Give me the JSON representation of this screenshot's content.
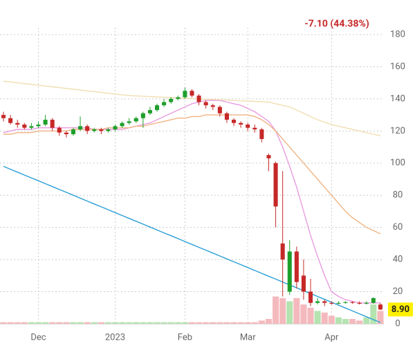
{
  "chart_data": {
    "type": "candlestick",
    "annotation": "-7.10 (44.38%)",
    "last_price": {
      "value": 8.9,
      "label": "8.90"
    },
    "categories": [
      null,
      null,
      null,
      null,
      null,
      "Dec",
      null,
      null,
      null,
      null,
      null,
      null,
      null,
      null,
      null,
      null,
      "2023",
      null,
      null,
      null,
      null,
      null,
      null,
      null,
      null,
      null,
      "Feb",
      null,
      null,
      null,
      null,
      null,
      null,
      null,
      null,
      "Mar",
      null,
      null,
      null,
      null,
      null,
      null,
      null,
      null,
      null,
      null,
      null,
      "Apr",
      null,
      null,
      null,
      null,
      null,
      null,
      null
    ],
    "open": [
      130,
      128,
      125,
      124,
      122,
      123,
      124,
      127,
      122,
      119,
      118,
      121,
      123,
      120,
      121,
      120,
      121,
      123,
      125,
      126,
      128,
      131,
      133,
      136,
      138,
      140,
      141,
      145,
      142,
      138,
      136,
      135,
      131,
      127,
      125,
      124,
      122,
      121,
      105,
      100,
      50,
      20,
      45,
      30,
      20,
      13,
      14,
      13,
      12.5,
      13,
      13.5,
      13,
      12.5,
      13,
      12
    ],
    "high": [
      132,
      130,
      127,
      125,
      125,
      126,
      130,
      128,
      123,
      120,
      122,
      129,
      124,
      122,
      122,
      122,
      124,
      126,
      128,
      129,
      132,
      135,
      137,
      140,
      141,
      142,
      147,
      146,
      143,
      139,
      137,
      136,
      132,
      128,
      126,
      125,
      124,
      122,
      106,
      101,
      95,
      52,
      48,
      40,
      28,
      16,
      15,
      14,
      14,
      14,
      14,
      14,
      14,
      16.5,
      13
    ],
    "low": [
      126,
      124,
      122,
      121,
      121,
      122,
      123,
      120,
      117,
      116,
      117,
      120,
      118,
      119,
      118,
      119,
      120,
      122,
      124,
      125,
      122,
      130,
      132,
      135,
      137,
      139,
      140,
      141,
      136,
      134,
      133,
      129,
      125,
      123,
      122,
      120,
      119,
      113,
      95,
      60,
      17,
      18,
      22,
      15,
      11,
      12,
      11,
      12,
      12,
      12.5,
      12.5,
      12,
      12,
      12.5,
      8.5
    ],
    "close": [
      128,
      125,
      124,
      122,
      123,
      124,
      127,
      122,
      119,
      118,
      121,
      123,
      120,
      121,
      120,
      121,
      123,
      125,
      126,
      128,
      131,
      133,
      136,
      138,
      140,
      141,
      145,
      142,
      138,
      136,
      135,
      131,
      127,
      125,
      124,
      122,
      121,
      115,
      103,
      73,
      40,
      45,
      26,
      20,
      13,
      14,
      13,
      12.5,
      13,
      13.5,
      13,
      12.5,
      13,
      16,
      8.9
    ],
    "volume": [
      1,
      1,
      1,
      1,
      1,
      1,
      1,
      1,
      1,
      1,
      1,
      1,
      1,
      1,
      1,
      1,
      1,
      1,
      1,
      1,
      1,
      1,
      1,
      1,
      1,
      1,
      1,
      1,
      1,
      1,
      1,
      1,
      1,
      1,
      1,
      1,
      1,
      2,
      3,
      17,
      16,
      14,
      16,
      12,
      10,
      8,
      7,
      5,
      4,
      3,
      3,
      2,
      4,
      12,
      8
    ],
    "up_color": "#1e9e2a",
    "down_color": "#c62828",
    "up_volume_color": "#b5e3b0",
    "down_volume_color": "#f4b9bd",
    "lines": [
      {
        "color": "#e89be0",
        "values": [
          119,
          120,
          121,
          121,
          121,
          122,
          122,
          122,
          122,
          122,
          122,
          122,
          122,
          121,
          121,
          121,
          121,
          121,
          122,
          123,
          124,
          125,
          127,
          129,
          131,
          133,
          135,
          137,
          138,
          139,
          139,
          139,
          138,
          137,
          136,
          134,
          132,
          129,
          126,
          120,
          110,
          98,
          85,
          70,
          55,
          42,
          30,
          20,
          17,
          15,
          14,
          13,
          13,
          13,
          13
        ]
      },
      {
        "color": "#eeb482",
        "values": [
          118,
          118,
          119,
          119,
          119,
          120,
          120,
          120,
          120,
          120,
          121,
          121,
          121,
          121,
          121,
          122,
          122,
          122,
          122,
          123,
          123,
          124,
          125,
          126,
          127,
          128,
          128,
          129,
          129,
          130,
          130,
          130,
          130,
          130,
          130,
          130,
          129,
          127,
          124,
          120,
          115,
          110,
          105,
          100,
          95,
          90,
          85,
          80,
          75,
          70,
          66,
          63,
          60,
          58,
          56
        ]
      },
      {
        "color": "#f0deb0",
        "values": [
          151,
          150.5,
          150,
          149.5,
          149,
          148.5,
          148,
          147.5,
          147,
          146.5,
          146,
          145.5,
          145,
          144.5,
          144,
          143.5,
          143,
          142.5,
          142,
          141.8,
          141.6,
          141.4,
          141.2,
          141,
          140.8,
          140.6,
          140.4,
          140.2,
          140,
          139.8,
          139.6,
          139.4,
          139.2,
          139,
          138.8,
          138.6,
          138.4,
          138.2,
          138,
          137,
          136,
          135,
          133,
          131,
          129,
          127,
          125.5,
          124,
          123,
          122,
          121,
          120,
          119,
          118,
          117
        ]
      },
      {
        "color": "#2a9fd6",
        "values": [
          98,
          96.2,
          94.4,
          92.6,
          90.8,
          89,
          87.2,
          85.4,
          83.6,
          81.8,
          80,
          78.2,
          76.4,
          74.6,
          72.8,
          71,
          69.2,
          67.4,
          65.6,
          63.8,
          62,
          60.2,
          58.4,
          56.6,
          54.8,
          53,
          51.2,
          49.4,
          47.6,
          45.8,
          44,
          42.2,
          40.4,
          38.6,
          36.8,
          35,
          33.2,
          31.4,
          29.6,
          27.8,
          26,
          24.2,
          22.4,
          20.6,
          18.8,
          17,
          15.2,
          13.4,
          11.6,
          9.8,
          8,
          6.2,
          4.4,
          2.6,
          0.8
        ]
      }
    ],
    "ylim": [
      0,
      180
    ],
    "yticks": [
      0,
      20,
      40,
      60,
      80,
      100,
      120,
      140,
      160,
      180
    ],
    "grid": true
  }
}
